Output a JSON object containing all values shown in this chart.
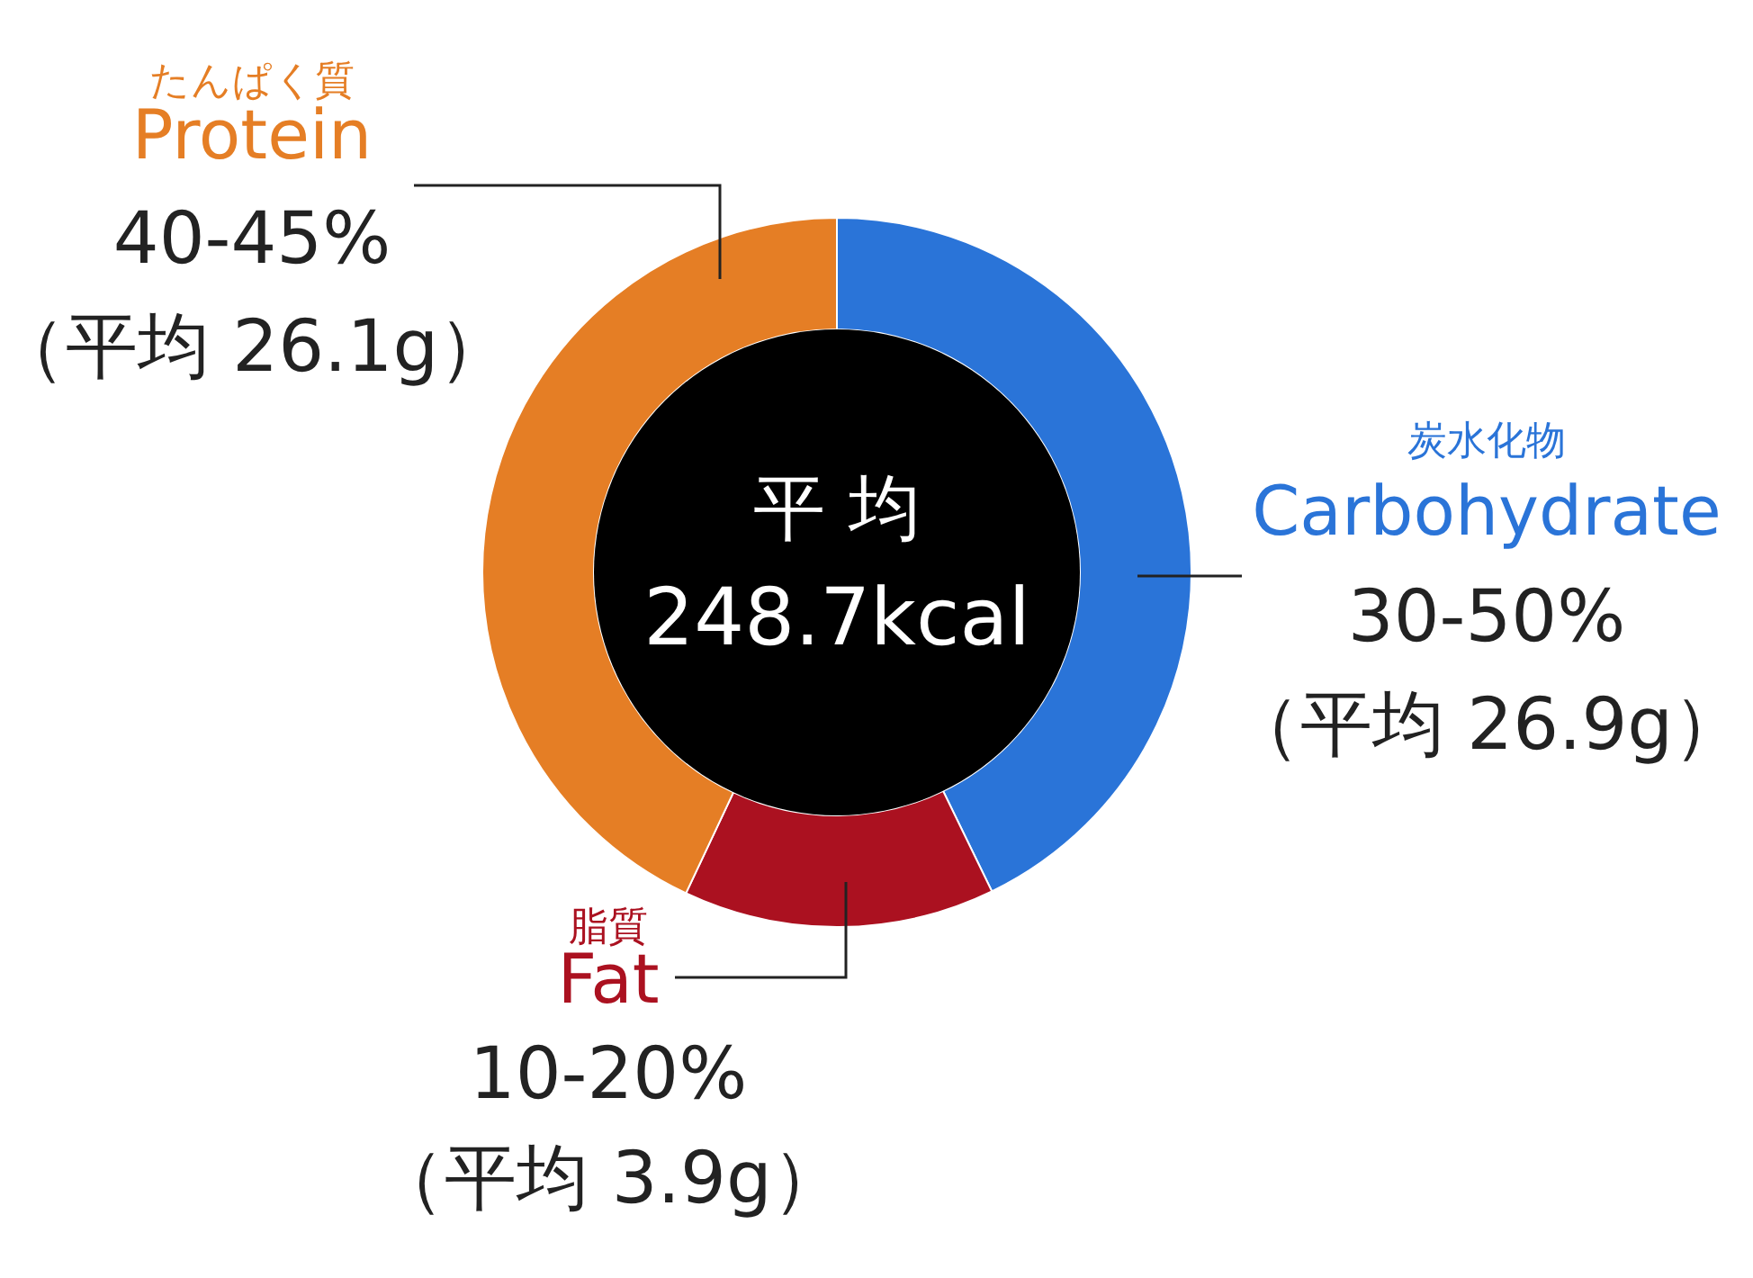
{
  "chart_data": {
    "type": "donut",
    "title": "平 均",
    "subtitle": "248.7kcal",
    "categories": [
      "Carbohydrate",
      "Fat",
      "Protein"
    ],
    "values": [
      42.8,
      14.2,
      43.0
    ],
    "colors": [
      "#2a74d8",
      "#ab1120",
      "#e57e25"
    ],
    "annotations": [
      {
        "text": "炭水化物",
        "x": "Carbohydrate"
      },
      {
        "text": "30-50%",
        "x": "Carbohydrate"
      },
      {
        "text": "（平均 26.9g）",
        "x": "Carbohydrate"
      },
      {
        "text": "脂質",
        "x": "Fat"
      },
      {
        "text": "10-20%",
        "x": "Fat"
      },
      {
        "text": "（平均 3.9g）",
        "x": "Fat"
      },
      {
        "text": "たんぱく質",
        "x": "Protein"
      },
      {
        "text": "40-45%",
        "x": "Protein"
      },
      {
        "text": "（平均 26.1g）",
        "x": "Protein"
      }
    ]
  }
}
